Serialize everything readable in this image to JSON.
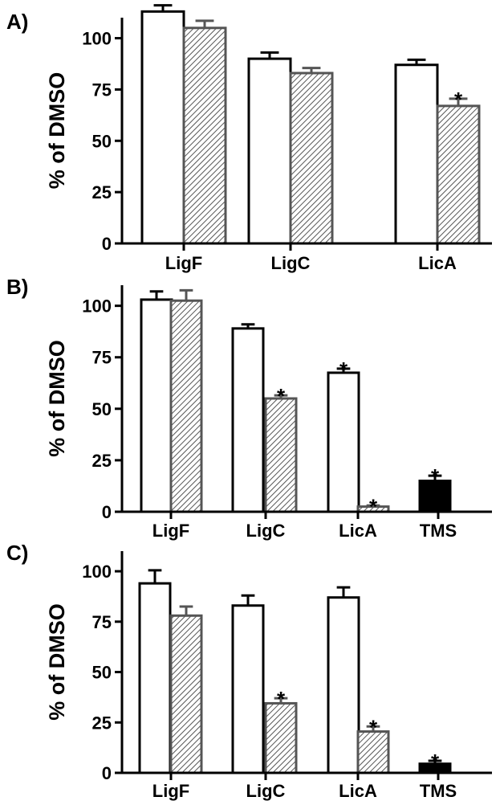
{
  "chart_data": [
    {
      "type": "bar",
      "panel_label": "A)",
      "ylabel": "% of DMSO",
      "ylim": [
        0,
        110
      ],
      "yticks": [
        0,
        25,
        50,
        75,
        100
      ],
      "categories": [
        "LigF",
        "LigC",
        "LicA"
      ],
      "series": [
        {
          "style": "open",
          "values": [
            113,
            90,
            87
          ],
          "errors": [
            3,
            3,
            2.5
          ],
          "significant": [
            false,
            false,
            false
          ]
        },
        {
          "style": "hatched",
          "values": [
            105,
            83,
            67
          ],
          "errors": [
            3.5,
            2.5,
            3.5
          ],
          "significant": [
            false,
            false,
            true
          ]
        }
      ],
      "annotation": "*"
    },
    {
      "type": "bar",
      "panel_label": "B)",
      "ylabel": "% of DMSO",
      "ylim": [
        0,
        110
      ],
      "yticks": [
        0,
        25,
        50,
        75,
        100
      ],
      "categories": [
        "LigF",
        "LigC",
        "LicA",
        "TMS"
      ],
      "series": [
        {
          "style": "open",
          "values": [
            103,
            89,
            67.5,
            null
          ],
          "errors": [
            4,
            2,
            2,
            null
          ],
          "significant": [
            false,
            false,
            true,
            false
          ]
        },
        {
          "style": "hatched",
          "values": [
            102.5,
            55,
            2.5,
            null
          ],
          "errors": [
            5,
            1.5,
            0.5,
            null
          ],
          "significant": [
            false,
            true,
            true,
            false
          ]
        },
        {
          "style": "solid",
          "values": [
            null,
            null,
            null,
            15
          ],
          "errors": [
            null,
            null,
            null,
            2.5
          ],
          "significant": [
            false,
            false,
            false,
            true
          ]
        }
      ],
      "annotation": "*"
    },
    {
      "type": "bar",
      "panel_label": "C)",
      "ylabel": "% of DMSO",
      "ylim": [
        0,
        110
      ],
      "yticks": [
        0,
        25,
        50,
        75,
        100
      ],
      "categories": [
        "LigF",
        "LigC",
        "LicA",
        "TMS"
      ],
      "series": [
        {
          "style": "open",
          "values": [
            94,
            83,
            87,
            null
          ],
          "errors": [
            6.5,
            5,
            5,
            null
          ],
          "significant": [
            false,
            false,
            false,
            false
          ]
        },
        {
          "style": "hatched",
          "values": [
            78,
            34.5,
            20.5,
            null
          ],
          "errors": [
            4.5,
            2.5,
            2.5,
            null
          ],
          "significant": [
            false,
            true,
            true,
            false
          ]
        },
        {
          "style": "solid",
          "values": [
            null,
            null,
            null,
            4.5
          ],
          "errors": [
            null,
            null,
            null,
            1.5
          ],
          "significant": [
            false,
            false,
            false,
            true
          ]
        }
      ],
      "annotation": "*"
    }
  ]
}
